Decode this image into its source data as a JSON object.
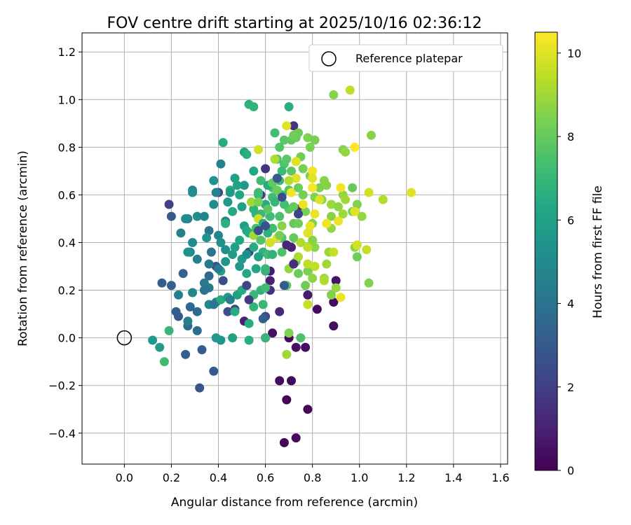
{
  "chart_data": {
    "type": "scatter",
    "title": "FOV centre drift starting at 2025/10/16 02:36:12",
    "xlabel": "Angular distance from reference (arcmin)",
    "ylabel": "Rotation from reference (arcmin)",
    "xlim": [
      -0.18,
      1.63
    ],
    "ylim": [
      -0.53,
      1.28
    ],
    "xticks": [
      0.0,
      0.2,
      0.4,
      0.6,
      0.8,
      1.0,
      1.2,
      1.4,
      1.6
    ],
    "xtick_labels": [
      "0.0",
      "0.2",
      "0.4",
      "0.6",
      "0.8",
      "1.0",
      "1.2",
      "1.4",
      "1.6"
    ],
    "yticks": [
      -0.4,
      -0.2,
      0.0,
      0.2,
      0.4,
      0.6,
      0.8,
      1.0,
      1.2
    ],
    "ytick_labels": [
      "−0.4",
      "−0.2",
      "0.0",
      "0.2",
      "0.4",
      "0.6",
      "0.8",
      "1.0",
      "1.2"
    ],
    "grid": true,
    "legend": {
      "label": "Reference platepar",
      "location": "upper-right"
    },
    "reference_point": {
      "x": 0.0,
      "y": 0.0
    },
    "colorbar": {
      "label": "Hours from first FF file",
      "range": [
        0,
        10.5
      ],
      "ticks": [
        0,
        2,
        4,
        6,
        8,
        10
      ],
      "tick_labels": [
        "0",
        "2",
        "4",
        "6",
        "8",
        "10"
      ],
      "colormap": "viridis"
    },
    "points": [
      [
        0.68,
        -0.44,
        0.2
      ],
      [
        0.73,
        -0.42,
        0.3
      ],
      [
        0.78,
        -0.3,
        0.2
      ],
      [
        0.69,
        -0.26,
        0.1
      ],
      [
        0.66,
        -0.18,
        0.3
      ],
      [
        0.71,
        -0.18,
        0.2
      ],
      [
        0.7,
        0.0,
        0.2
      ],
      [
        0.77,
        -0.04,
        0.4
      ],
      [
        0.73,
        -0.04,
        0.5
      ],
      [
        0.6,
        0.0,
        0.3
      ],
      [
        0.51,
        0.07,
        1.0
      ],
      [
        0.63,
        0.02,
        0.5
      ],
      [
        0.82,
        0.12,
        0.3
      ],
      [
        0.89,
        0.15,
        0.3
      ],
      [
        0.89,
        0.05,
        0.4
      ],
      [
        0.9,
        0.24,
        0.6
      ],
      [
        0.78,
        0.18,
        0.8
      ],
      [
        0.66,
        0.11,
        1.2
      ],
      [
        0.62,
        0.28,
        0.8
      ],
      [
        0.62,
        0.24,
        1.0
      ],
      [
        0.62,
        0.2,
        1.5
      ],
      [
        0.71,
        0.38,
        1.0
      ],
      [
        0.74,
        0.54,
        1.3
      ],
      [
        0.72,
        0.89,
        1.6
      ],
      [
        0.6,
        0.71,
        1.6
      ],
      [
        0.58,
        0.6,
        1.8
      ],
      [
        0.53,
        0.36,
        2.0
      ],
      [
        0.47,
        0.12,
        2.2
      ],
      [
        0.44,
        0.11,
        2.6
      ],
      [
        0.42,
        0.24,
        2.6
      ],
      [
        0.39,
        0.3,
        2.7
      ],
      [
        0.4,
        0.61,
        2.0
      ],
      [
        0.19,
        0.56,
        2.0
      ],
      [
        0.2,
        0.51,
        3.0
      ],
      [
        0.32,
        -0.21,
        2.8
      ],
      [
        0.38,
        -0.14,
        3.0
      ],
      [
        0.33,
        -0.05,
        3.2
      ],
      [
        0.26,
        -0.07,
        3.2
      ],
      [
        0.23,
        0.09,
        3.0
      ],
      [
        0.16,
        0.23,
        3.2
      ],
      [
        0.22,
        0.11,
        3.2
      ],
      [
        0.2,
        0.22,
        3.3
      ],
      [
        0.25,
        0.27,
        3.3
      ],
      [
        0.23,
        0.18,
        4.5
      ],
      [
        0.27,
        0.05,
        3.8
      ],
      [
        0.31,
        0.03,
        3.8
      ],
      [
        0.27,
        0.07,
        4.6
      ],
      [
        0.29,
        0.19,
        4.8
      ],
      [
        0.28,
        0.36,
        4.8
      ],
      [
        0.24,
        0.44,
        4.6
      ],
      [
        0.27,
        0.5,
        4.6
      ],
      [
        0.29,
        0.62,
        4.8
      ],
      [
        0.29,
        0.61,
        5.2
      ],
      [
        0.36,
        0.45,
        4.0
      ],
      [
        0.37,
        0.36,
        4.0
      ],
      [
        0.36,
        0.31,
        4.2
      ],
      [
        0.34,
        0.23,
        4.2
      ],
      [
        0.36,
        0.21,
        4.2
      ],
      [
        0.36,
        0.14,
        5.0
      ],
      [
        0.39,
        0.15,
        4.8
      ],
      [
        0.31,
        0.33,
        4.5
      ],
      [
        0.29,
        0.4,
        5.0
      ],
      [
        0.31,
        0.51,
        5.2
      ],
      [
        0.34,
        0.51,
        4.8
      ],
      [
        0.38,
        0.56,
        5.2
      ],
      [
        0.39,
        0.61,
        4.7
      ],
      [
        0.38,
        0.66,
        5.3
      ],
      [
        0.41,
        0.73,
        4.5
      ],
      [
        0.43,
        0.49,
        4.8
      ],
      [
        0.4,
        0.43,
        4.8
      ],
      [
        0.41,
        0.4,
        5.3
      ],
      [
        0.43,
        0.37,
        5.3
      ],
      [
        0.43,
        0.32,
        5.5
      ],
      [
        0.41,
        0.28,
        6.0
      ],
      [
        0.41,
        0.16,
        6.5
      ],
      [
        0.44,
        0.17,
        5.6
      ],
      [
        0.48,
        0.18,
        6.0
      ],
      [
        0.46,
        0.35,
        5.8
      ],
      [
        0.49,
        0.3,
        5.6
      ],
      [
        0.5,
        0.33,
        5.7
      ],
      [
        0.51,
        0.47,
        5.9
      ],
      [
        0.5,
        0.55,
        6.0
      ],
      [
        0.49,
        0.6,
        6.2
      ],
      [
        0.51,
        0.64,
        5.6
      ],
      [
        0.47,
        0.67,
        6.0
      ],
      [
        0.42,
        0.82,
        6.5
      ],
      [
        0.45,
        0.62,
        6.5
      ],
      [
        0.51,
        0.78,
        6.2
      ],
      [
        0.52,
        0.77,
        6.6
      ],
      [
        0.53,
        0.98,
        6.7
      ],
      [
        0.55,
        0.97,
        6.8
      ],
      [
        0.55,
        0.7,
        6.3
      ],
      [
        0.52,
        0.45,
        6.4
      ],
      [
        0.52,
        0.27,
        6.4
      ],
      [
        0.5,
        0.2,
        6.5
      ],
      [
        0.53,
        0.06,
        6.5
      ],
      [
        0.46,
        -0.0,
        6.0
      ],
      [
        0.53,
        -0.01,
        6.6
      ],
      [
        0.41,
        -0.01,
        5.5
      ],
      [
        0.39,
        -0.0,
        5.6
      ],
      [
        0.12,
        -0.01,
        5.7
      ],
      [
        0.15,
        -0.04,
        5.8
      ],
      [
        0.19,
        0.03,
        7.0
      ],
      [
        0.17,
        -0.1,
        7.2
      ],
      [
        0.47,
        0.11,
        6.5
      ],
      [
        0.43,
        0.48,
        6.6
      ],
      [
        0.46,
        0.53,
        6.4
      ],
      [
        0.53,
        0.44,
        6.5
      ],
      [
        0.55,
        0.38,
        6.5
      ],
      [
        0.55,
        0.54,
        6.8
      ],
      [
        0.56,
        0.52,
        6.7
      ],
      [
        0.57,
        0.6,
        7.0
      ],
      [
        0.57,
        0.61,
        7.2
      ],
      [
        0.58,
        0.66,
        7.2
      ],
      [
        0.58,
        0.52,
        7.0
      ],
      [
        0.59,
        0.36,
        6.7
      ],
      [
        0.6,
        0.28,
        6.8
      ],
      [
        0.58,
        0.2,
        6.9
      ],
      [
        0.55,
        0.13,
        6.9
      ],
      [
        0.55,
        0.18,
        7.0
      ],
      [
        0.6,
        0.0,
        7.0
      ],
      [
        0.6,
        0.21,
        7.2
      ],
      [
        0.6,
        0.29,
        7.0
      ],
      [
        0.61,
        0.35,
        7.2
      ],
      [
        0.62,
        0.51,
        7.2
      ],
      [
        0.63,
        0.46,
        7.3
      ],
      [
        0.63,
        0.63,
        7.4
      ],
      [
        0.63,
        0.59,
        7.3
      ],
      [
        0.64,
        0.86,
        7.3
      ],
      [
        0.65,
        0.75,
        7.5
      ],
      [
        0.66,
        0.8,
        7.6
      ],
      [
        0.66,
        0.51,
        7.5
      ],
      [
        0.67,
        0.36,
        7.5
      ],
      [
        0.67,
        0.42,
        7.6
      ],
      [
        0.69,
        0.22,
        7.7
      ],
      [
        0.68,
        0.73,
        7.6
      ],
      [
        0.68,
        0.83,
        7.8
      ],
      [
        0.69,
        0.75,
        7.8
      ],
      [
        0.7,
        0.62,
        7.7
      ],
      [
        0.7,
        0.54,
        7.8
      ],
      [
        0.7,
        0.97,
        6.6
      ],
      [
        0.71,
        0.7,
        7.8
      ],
      [
        0.72,
        0.55,
        8.0
      ],
      [
        0.72,
        0.48,
        8.0
      ],
      [
        0.72,
        0.42,
        8.0
      ],
      [
        0.73,
        0.32,
        8.0
      ],
      [
        0.73,
        0.84,
        8.1
      ],
      [
        0.74,
        0.86,
        8.1
      ],
      [
        0.75,
        0.76,
        8.2
      ],
      [
        0.76,
        0.71,
        8.3
      ],
      [
        0.76,
        0.6,
        8.3
      ],
      [
        0.77,
        0.53,
        8.4
      ],
      [
        0.78,
        0.28,
        8.4
      ],
      [
        0.77,
        0.22,
        8.2
      ],
      [
        0.75,
        0.0,
        7.5
      ],
      [
        0.7,
        0.02,
        8.5
      ],
      [
        0.69,
        -0.07,
        9.0
      ],
      [
        0.7,
        0.29,
        8.8
      ],
      [
        0.78,
        0.84,
        8.5
      ],
      [
        0.79,
        0.8,
        8.4
      ],
      [
        0.81,
        0.83,
        8.3
      ],
      [
        0.79,
        0.68,
        8.4
      ],
      [
        0.81,
        0.59,
        8.5
      ],
      [
        0.8,
        0.48,
        8.5
      ],
      [
        0.8,
        0.41,
        8.6
      ],
      [
        0.81,
        0.38,
        8.7
      ],
      [
        0.8,
        0.25,
        8.7
      ],
      [
        0.85,
        0.66,
        8.6
      ],
      [
        0.88,
        0.51,
        8.6
      ],
      [
        0.88,
        0.46,
        8.8
      ],
      [
        0.87,
        0.36,
        8.9
      ],
      [
        0.86,
        0.31,
        9.0
      ],
      [
        0.85,
        0.25,
        9.0
      ],
      [
        0.88,
        0.18,
        8.5
      ],
      [
        0.9,
        0.21,
        8.8
      ],
      [
        0.84,
        0.58,
        8.6
      ],
      [
        0.83,
        0.63,
        8.5
      ],
      [
        0.86,
        0.64,
        8.6
      ],
      [
        0.88,
        0.56,
        8.9
      ],
      [
        0.91,
        0.55,
        8.7
      ],
      [
        0.93,
        0.6,
        8.8
      ],
      [
        0.93,
        0.52,
        9.0
      ],
      [
        0.94,
        0.58,
        9.0
      ],
      [
        0.89,
        1.02,
        8.6
      ],
      [
        0.93,
        0.79,
        8.5
      ],
      [
        0.94,
        0.78,
        8.8
      ],
      [
        0.96,
        1.04,
        9.5
      ],
      [
        0.97,
        0.63,
        8.0
      ],
      [
        0.97,
        0.53,
        8.3
      ],
      [
        0.99,
        0.56,
        8.5
      ],
      [
        0.98,
        0.38,
        8.8
      ],
      [
        0.99,
        0.34,
        8.2
      ],
      [
        1.01,
        0.51,
        8.8
      ],
      [
        1.05,
        0.85,
        8.6
      ],
      [
        1.04,
        0.23,
        8.5
      ],
      [
        1.1,
        0.58,
        9.3
      ],
      [
        1.04,
        0.61,
        9.8
      ],
      [
        1.03,
        0.37,
        9.6
      ],
      [
        1.22,
        0.61,
        10.0
      ],
      [
        0.98,
        0.8,
        10.5
      ],
      [
        0.98,
        0.53,
        10.0
      ],
      [
        0.99,
        0.39,
        9.8
      ],
      [
        0.91,
        0.49,
        10.2
      ],
      [
        0.92,
        0.63,
        10.3
      ],
      [
        0.92,
        0.17,
        10.2
      ],
      [
        0.86,
        0.48,
        10.3
      ],
      [
        0.83,
        0.58,
        10.0
      ],
      [
        0.81,
        0.52,
        10.2
      ],
      [
        0.8,
        0.7,
        10.3
      ],
      [
        0.8,
        0.63,
        10.4
      ],
      [
        0.8,
        0.67,
        10.0
      ],
      [
        0.79,
        0.47,
        10.1
      ],
      [
        0.78,
        0.44,
        10.0
      ],
      [
        0.76,
        0.56,
        10.2
      ],
      [
        0.73,
        0.67,
        10.0
      ],
      [
        0.73,
        0.74,
        10.0
      ],
      [
        0.71,
        0.61,
        10.3
      ],
      [
        0.69,
        0.89,
        10.0
      ],
      [
        0.65,
        0.42,
        10.0
      ],
      [
        0.62,
        0.4,
        9.8
      ],
      [
        0.57,
        0.79,
        9.8
      ],
      [
        0.57,
        0.5,
        9.7
      ],
      [
        0.55,
        0.43,
        9.0
      ],
      [
        0.54,
        0.57,
        9.0
      ],
      [
        0.64,
        0.75,
        9.2
      ],
      [
        0.7,
        0.66,
        9.3
      ],
      [
        0.78,
        0.38,
        9.5
      ],
      [
        0.78,
        0.14,
        9.6
      ],
      [
        0.78,
        0.31,
        9.5
      ],
      [
        0.81,
        0.3,
        9.5
      ],
      [
        0.85,
        0.24,
        9.2
      ],
      [
        0.74,
        0.34,
        9.2
      ],
      [
        0.75,
        0.4,
        9.2
      ],
      [
        0.89,
        0.36,
        9.6
      ],
      [
        0.26,
        0.5,
        5.0
      ],
      [
        0.27,
        0.36,
        5.4
      ],
      [
        0.35,
        0.42,
        5.4
      ],
      [
        0.44,
        0.57,
        5.6
      ],
      [
        0.45,
        0.61,
        5.6
      ],
      [
        0.48,
        0.64,
        6.1
      ],
      [
        0.47,
        0.38,
        6.0
      ],
      [
        0.49,
        0.41,
        6.3
      ],
      [
        0.56,
        0.29,
        6.2
      ],
      [
        0.57,
        0.34,
        6.1
      ],
      [
        0.59,
        0.48,
        6.4
      ],
      [
        0.6,
        0.56,
        6.5
      ],
      [
        0.61,
        0.64,
        6.5
      ],
      [
        0.61,
        0.44,
        6.8
      ],
      [
        0.64,
        0.57,
        7.0
      ],
      [
        0.66,
        0.66,
        7.0
      ],
      [
        0.67,
        0.7,
        7.1
      ],
      [
        0.67,
        0.6,
        7.1
      ],
      [
        0.68,
        0.56,
        7.3
      ],
      [
        0.71,
        0.83,
        7.9
      ],
      [
        0.72,
        0.85,
        8.2
      ],
      [
        0.74,
        0.63,
        8.1
      ],
      [
        0.74,
        0.48,
        8.2
      ],
      [
        0.74,
        0.27,
        8.1
      ],
      [
        0.63,
        0.35,
        6.8
      ],
      [
        0.59,
        0.14,
        7.0
      ],
      [
        0.56,
        0.46,
        7.4
      ],
      [
        0.58,
        0.41,
        7.6
      ],
      [
        0.61,
        0.54,
        7.8
      ],
      [
        0.63,
        0.65,
        7.9
      ],
      [
        0.65,
        0.62,
        8.1
      ],
      [
        0.66,
        0.43,
        8.3
      ],
      [
        0.57,
        0.57,
        8.4
      ],
      [
        0.67,
        0.47,
        8.6
      ],
      [
        0.52,
        0.35,
        5.2
      ],
      [
        0.45,
        0.16,
        4.6
      ],
      [
        0.4,
        0.29,
        4.3
      ],
      [
        0.38,
        0.14,
        4.1
      ],
      [
        0.36,
        0.26,
        3.6
      ],
      [
        0.34,
        0.2,
        3.9
      ],
      [
        0.31,
        0.11,
        3.7
      ],
      [
        0.28,
        0.13,
        3.5
      ],
      [
        0.6,
        0.09,
        2.4
      ],
      [
        0.59,
        0.08,
        3.2
      ],
      [
        0.68,
        0.22,
        3.0
      ],
      [
        0.69,
        0.39,
        1.2
      ],
      [
        0.72,
        0.31,
        1.4
      ],
      [
        0.74,
        0.52,
        2.2
      ],
      [
        0.67,
        0.59,
        2.5
      ],
      [
        0.65,
        0.67,
        3.0
      ],
      [
        0.6,
        0.47,
        2.8
      ],
      [
        0.57,
        0.45,
        2.6
      ],
      [
        0.52,
        0.22,
        2.2
      ],
      [
        0.53,
        0.16,
        1.8
      ]
    ]
  }
}
